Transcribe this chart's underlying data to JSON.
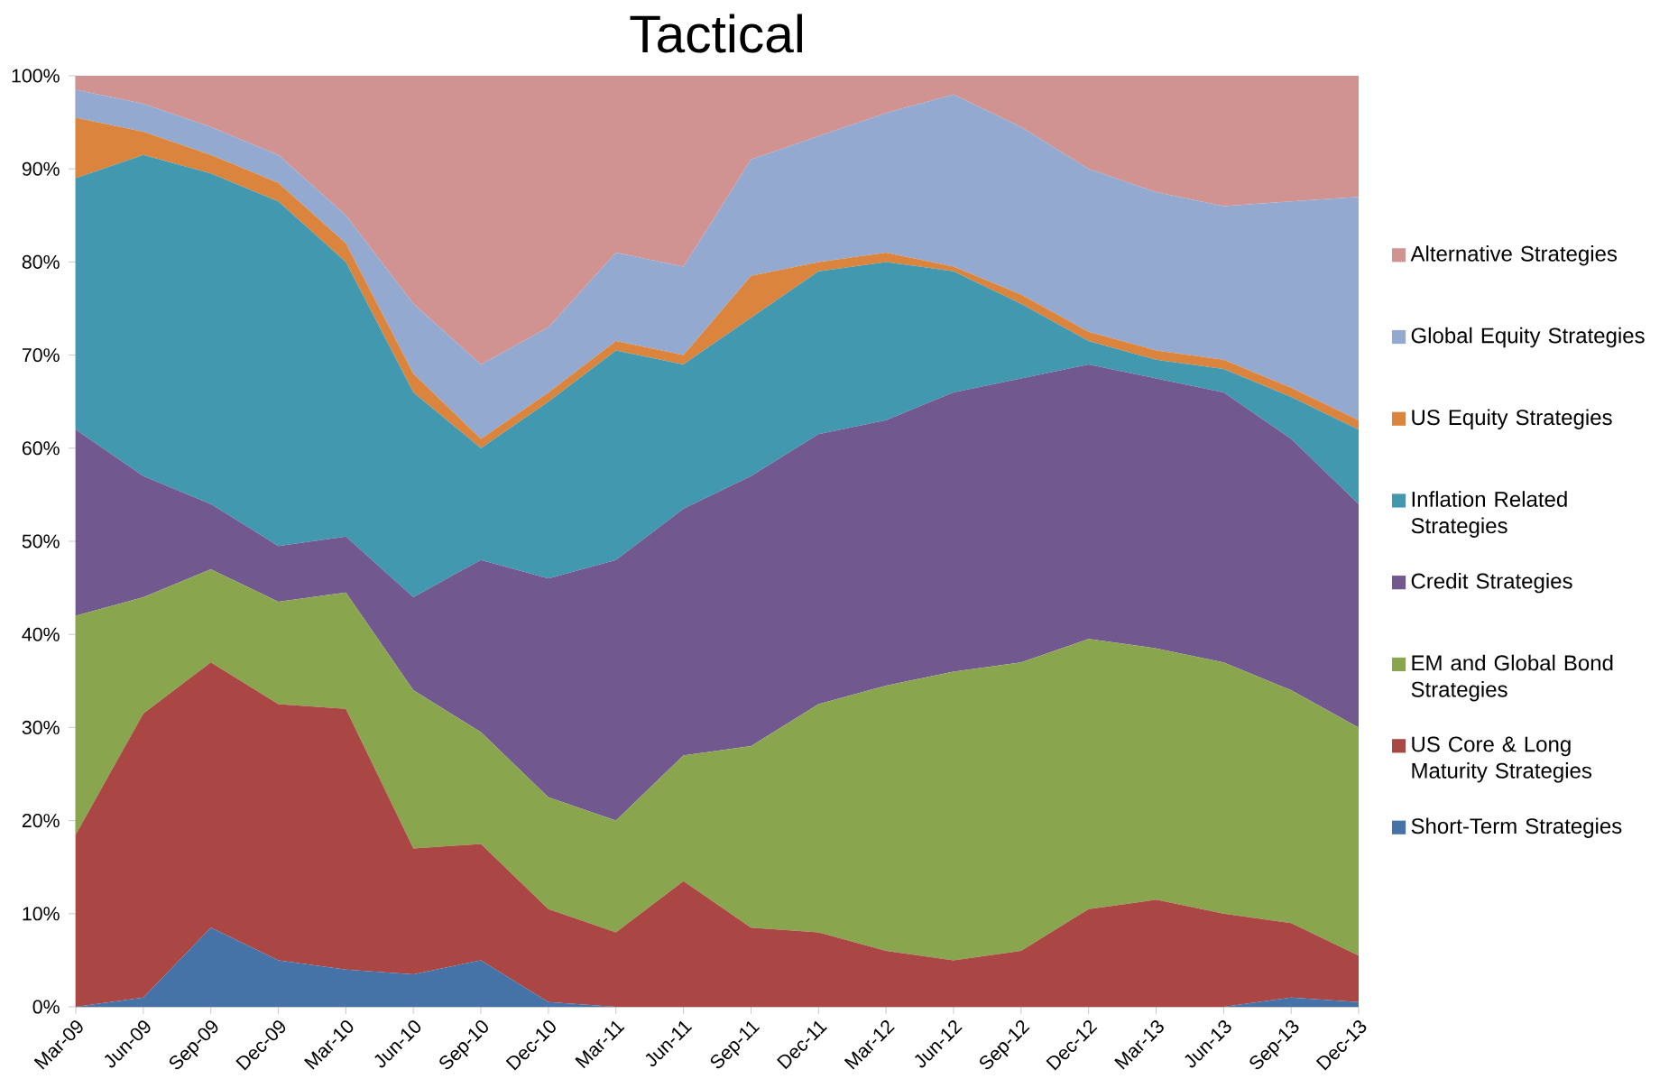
{
  "chart_data": {
    "type": "area",
    "stacked": true,
    "title": "Tactical",
    "categories": [
      "Mar-09",
      "Jun-09",
      "Sep-09",
      "Dec-09",
      "Mar-10",
      "Jun-10",
      "Sep-10",
      "Dec-10",
      "Mar-11",
      "Jun-11",
      "Sep-11",
      "Dec-11",
      "Mar-12",
      "Jun-12",
      "Sep-12",
      "Dec-12",
      "Mar-13",
      "Jun-13",
      "Sep-13",
      "Dec-13"
    ],
    "ylim": [
      0,
      100
    ],
    "yticks": [
      {
        "value": 0,
        "label": "0%"
      },
      {
        "value": 10,
        "label": "10%"
      },
      {
        "value": 20,
        "label": "20%"
      },
      {
        "value": 30,
        "label": "30%"
      },
      {
        "value": 40,
        "label": "40%"
      },
      {
        "value": 50,
        "label": "50%"
      },
      {
        "value": 60,
        "label": "60%"
      },
      {
        "value": 70,
        "label": "70%"
      },
      {
        "value": 80,
        "label": "80%"
      },
      {
        "value": 90,
        "label": "90%"
      },
      {
        "value": 100,
        "label": "100%"
      }
    ],
    "legend": "right",
    "series": [
      {
        "name": "Short-Term Strategies",
        "color": "#4572a7",
        "values": [
          0,
          1,
          8.5,
          5,
          4,
          3.5,
          5,
          0.5,
          0,
          0,
          0,
          0,
          0,
          0,
          0,
          0,
          0,
          0,
          1,
          0.5
        ]
      },
      {
        "name": "US Core & Long Maturity Strategies",
        "color": "#aa4643",
        "values": [
          18.5,
          30.5,
          28.5,
          27.5,
          28,
          13.5,
          12.5,
          10,
          8,
          13.5,
          8.5,
          8,
          6,
          5,
          6,
          10.5,
          11.5,
          10,
          8,
          5
        ]
      },
      {
        "name": "EM and Global Bond Strategies",
        "color": "#89a54e",
        "values": [
          23.5,
          12.5,
          10,
          11,
          12.5,
          17,
          12,
          12,
          12,
          13.5,
          19.5,
          24.5,
          28.5,
          31,
          31,
          29,
          27,
          27,
          25,
          24.5
        ]
      },
      {
        "name": "Credit Strategies",
        "color": "#71588f",
        "values": [
          20,
          13,
          7,
          6,
          6,
          10,
          18.5,
          23.5,
          28,
          26.5,
          29,
          29,
          28.5,
          30,
          30.5,
          29.5,
          29,
          29,
          27,
          24
        ]
      },
      {
        "name": "Inflation Related Strategies",
        "color": "#4198af",
        "values": [
          27,
          34.5,
          35.5,
          37,
          29.5,
          22,
          12,
          19,
          22.5,
          15.5,
          17,
          17.5,
          17,
          13,
          8,
          2.5,
          2,
          2.5,
          4.5,
          8
        ]
      },
      {
        "name": "US Equity Strategies",
        "color": "#db843d",
        "values": [
          6.5,
          2.5,
          2,
          2,
          2,
          2,
          1,
          1,
          1,
          1,
          4.5,
          1,
          1,
          0.5,
          1,
          1,
          1,
          1,
          1,
          1
        ]
      },
      {
        "name": "Global Equity Strategies",
        "color": "#93a9cf",
        "values": [
          3,
          3,
          3,
          3,
          3,
          7.5,
          8,
          7,
          9.5,
          9.5,
          12.5,
          13.5,
          15,
          18.5,
          18,
          17.5,
          17,
          16.5,
          20,
          24
        ]
      },
      {
        "name": "Alternative Strategies",
        "color": "#d19392",
        "values": [
          1.5,
          3,
          5.5,
          8.5,
          15,
          24.5,
          31,
          27,
          19,
          20.5,
          9,
          6.5,
          4,
          2,
          5.5,
          10,
          12.5,
          14,
          13.5,
          13
        ]
      }
    ]
  }
}
